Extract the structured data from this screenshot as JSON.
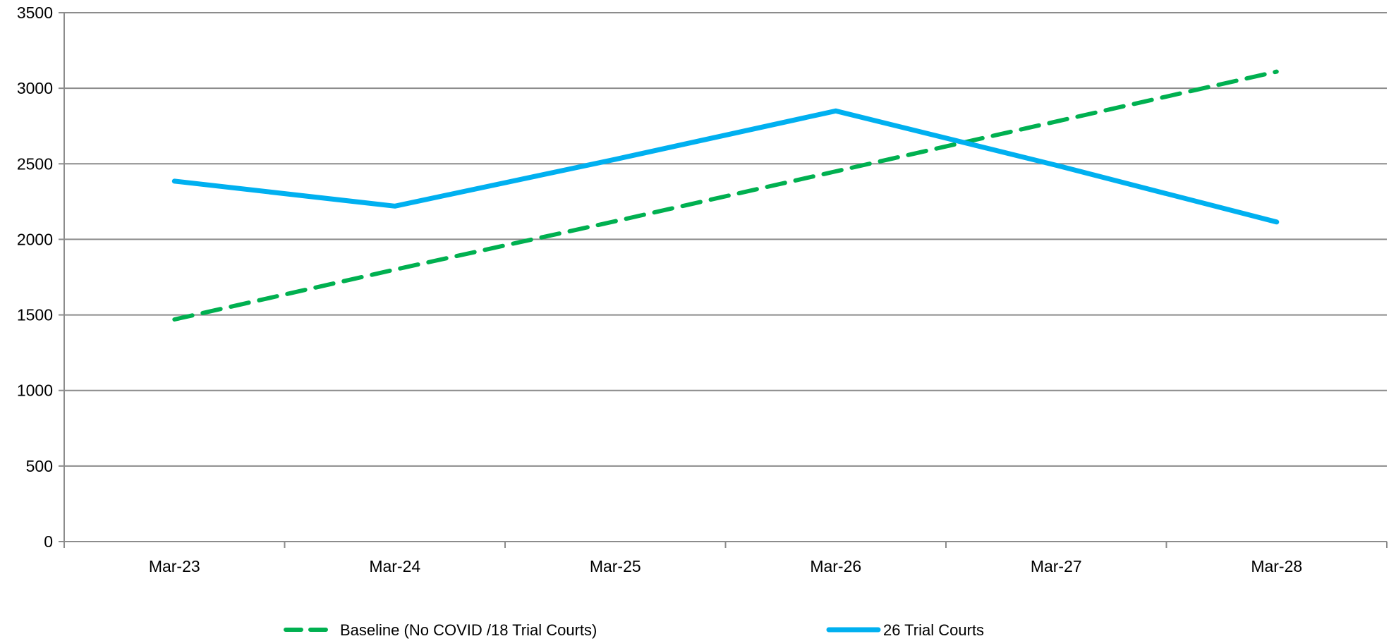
{
  "chart_data": {
    "type": "line",
    "title": "",
    "xlabel": "",
    "ylabel": "",
    "categories": [
      "Mar-23",
      "Mar-24",
      "Mar-25",
      "Mar-26",
      "Mar-27",
      "Mar-28"
    ],
    "ylim": [
      0,
      3500
    ],
    "yticks": [
      "0",
      "500",
      "1000",
      "1500",
      "2000",
      "2500",
      "3000",
      "3500"
    ],
    "grid": true,
    "legend_position": "bottom",
    "series": [
      {
        "name": "Baseline (No COVID /18 Trial Courts)",
        "values": [
          1470,
          1800,
          2120,
          2450,
          2780,
          3110
        ],
        "color": "#00b050",
        "style": "dashed"
      },
      {
        "name": "26 Trial Courts",
        "values": [
          2385,
          2220,
          2530,
          2850,
          2490,
          2115
        ],
        "color": "#00b0f0",
        "style": "solid"
      }
    ]
  }
}
